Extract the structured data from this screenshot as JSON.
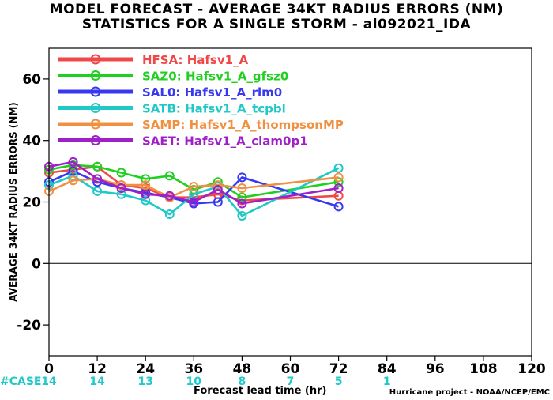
{
  "title_line1": "MODEL FORECAST - AVERAGE 34KT RADIUS ERRORS (NM)",
  "title_line2": "STATISTICS FOR A SINGLE STORM - al092021_IDA",
  "credit": "Hurricane project - NOAA/NCEP/EMC",
  "case_label": "#CASE",
  "chart_data": {
    "type": "line",
    "title": "MODEL FORECAST - AVERAGE 34KT RADIUS ERRORS (NM)",
    "subtitle": "STATISTICS FOR A SINGLE STORM - al092021_IDA",
    "xlabel": "Forecast lead time (hr)",
    "ylabel": "AVERAGE 34KT RADIUS ERRORS (NM)",
    "xlim": [
      0,
      120
    ],
    "ylim": [
      -30,
      70
    ],
    "xticks": [
      0,
      12,
      24,
      36,
      48,
      60,
      72,
      84,
      96,
      108,
      120
    ],
    "yticks": [
      -20,
      0,
      20,
      40,
      60
    ],
    "zero_line": true,
    "legend_position": "top-left",
    "cases": {
      "x": [
        0,
        12,
        24,
        36,
        48,
        60,
        72,
        84
      ],
      "values": [
        14,
        14,
        13,
        10,
        8,
        7,
        5,
        1
      ]
    },
    "series": [
      {
        "name": "HFSA: Hafsv1_A",
        "color": "#f04848",
        "x": [
          0,
          6,
          12,
          18,
          24,
          30,
          36,
          42,
          48,
          72
        ],
        "y": [
          29.5,
          30.5,
          31.5,
          25.5,
          24.5,
          21.5,
          21.5,
          22.5,
          20.5,
          22
        ]
      },
      {
        "name": "SAZ0: Hafsv1_A_gfsz0",
        "color": "#20d020",
        "x": [
          0,
          6,
          12,
          18,
          24,
          30,
          36,
          42,
          48,
          72
        ],
        "y": [
          30.5,
          32,
          31.5,
          29.5,
          27.5,
          28.5,
          24,
          26.5,
          21.5,
          26.5
        ]
      },
      {
        "name": "SAL0: Hafsv1_A_rlm0",
        "color": "#3838f0",
        "x": [
          0,
          6,
          12,
          18,
          24,
          30,
          36,
          42,
          48,
          72
        ],
        "y": [
          26.5,
          30,
          26.5,
          24.5,
          23,
          21.5,
          19.5,
          20,
          28,
          18.5
        ]
      },
      {
        "name": "SATB: Hafsv1_A_tcpbl",
        "color": "#20c8c8",
        "x": [
          0,
          6,
          12,
          18,
          24,
          30,
          36,
          42,
          48,
          72
        ],
        "y": [
          25.5,
          28.5,
          23.5,
          22.5,
          20.5,
          16,
          22.5,
          25,
          15.5,
          31
        ]
      },
      {
        "name": "SAMP: Hafsv1_A_thompsonMP",
        "color": "#f09040",
        "x": [
          0,
          6,
          12,
          18,
          24,
          30,
          36,
          42,
          48,
          72
        ],
        "y": [
          23.5,
          27,
          27.5,
          25.5,
          25.5,
          21.5,
          25,
          25.5,
          24.5,
          28
        ]
      },
      {
        "name": "SAET: Hafsv1_A_clam0p1",
        "color": "#a020c8",
        "x": [
          0,
          6,
          12,
          18,
          24,
          30,
          36,
          42,
          48,
          72
        ],
        "y": [
          31.5,
          33,
          27.5,
          24.5,
          22.5,
          22,
          20,
          24,
          19.5,
          24.5
        ]
      }
    ]
  }
}
